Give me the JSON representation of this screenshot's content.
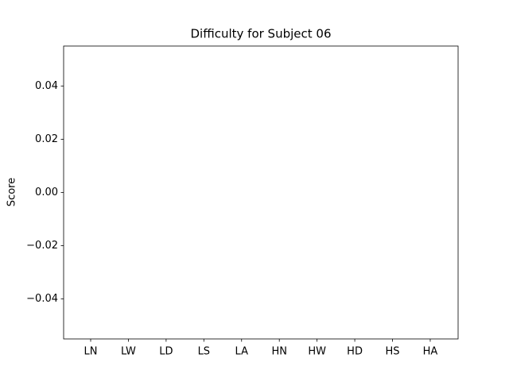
{
  "chart_data": {
    "type": "bar",
    "title": "Difficulty for Subject 06",
    "ylabel": "Score",
    "categories": [
      "LN",
      "LW",
      "LD",
      "LS",
      "LA",
      "HN",
      "HW",
      "HD",
      "HS",
      "HA"
    ],
    "values": [
      0,
      0,
      0,
      0,
      0,
      0,
      0,
      0,
      0,
      0
    ],
    "color": "#1f77b4",
    "ylim": [
      -0.055,
      0.055
    ],
    "yticks": [
      {
        "value": -0.04,
        "label": "−0.04"
      },
      {
        "value": -0.02,
        "label": "−0.02"
      },
      {
        "value": 0,
        "label": "0.00"
      },
      0.02,
      0.04
    ]
  }
}
